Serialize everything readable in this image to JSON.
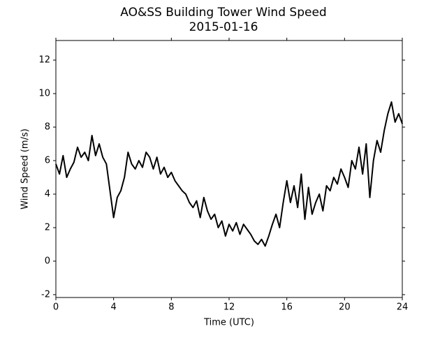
{
  "chart_data": {
    "type": "line",
    "title": "AO&SS Building Tower Wind Speed",
    "subtitle": "2015-01-16",
    "x_label": "Time (UTC)",
    "y_label": "Wind Speed (m/s)",
    "xlim": [
      0,
      24
    ],
    "xticks": [
      0,
      4,
      8,
      12,
      16,
      20,
      24
    ],
    "ylim": [
      -2.17,
      13.17
    ],
    "yticks": [
      -2,
      0,
      2,
      4,
      6,
      8,
      10,
      12
    ],
    "series": [
      {
        "name": "Wind Speed",
        "color": "#000000",
        "x": [
          0,
          0.25,
          0.5,
          0.75,
          1,
          1.25,
          1.5,
          1.75,
          2,
          2.25,
          2.5,
          2.75,
          3,
          3.25,
          3.5,
          3.75,
          4,
          4.25,
          4.5,
          4.75,
          5,
          5.25,
          5.5,
          5.75,
          6,
          6.25,
          6.5,
          6.75,
          7,
          7.25,
          7.5,
          7.75,
          8,
          8.25,
          8.5,
          8.75,
          9,
          9.25,
          9.5,
          9.75,
          10,
          10.25,
          10.5,
          10.75,
          11,
          11.25,
          11.5,
          11.75,
          12,
          12.25,
          12.5,
          12.75,
          13,
          13.25,
          13.5,
          13.75,
          14,
          14.25,
          14.5,
          14.75,
          15,
          15.25,
          15.5,
          15.75,
          16,
          16.25,
          16.5,
          16.75,
          17,
          17.25,
          17.5,
          17.75,
          18,
          18.25,
          18.5,
          18.75,
          19,
          19.25,
          19.5,
          19.75,
          20,
          20.25,
          20.5,
          20.75,
          21,
          21.25,
          21.5,
          21.75,
          22,
          22.25,
          22.5,
          22.75,
          23,
          23.25,
          23.5,
          23.75,
          24
        ],
        "values": [
          5.8,
          5.2,
          6.3,
          5.0,
          5.5,
          5.9,
          6.8,
          6.2,
          6.5,
          6.0,
          7.5,
          6.3,
          7.0,
          6.2,
          5.8,
          4.2,
          2.6,
          3.8,
          4.2,
          5.0,
          6.5,
          5.8,
          5.5,
          6.0,
          5.6,
          6.5,
          6.2,
          5.5,
          6.2,
          5.2,
          5.6,
          5.0,
          5.3,
          4.8,
          4.5,
          4.2,
          4.0,
          3.5,
          3.2,
          3.6,
          2.6,
          3.8,
          3.0,
          2.5,
          2.8,
          2.0,
          2.4,
          1.5,
          2.2,
          1.8,
          2.3,
          1.6,
          2.2,
          1.9,
          1.6,
          1.2,
          1.0,
          1.3,
          0.9,
          1.5,
          2.2,
          2.8,
          2.0,
          3.5,
          4.8,
          3.5,
          4.5,
          3.2,
          5.2,
          2.5,
          4.4,
          2.8,
          3.5,
          4.0,
          3.0,
          4.5,
          4.2,
          5.0,
          4.6,
          5.5,
          5.0,
          4.4,
          6.0,
          5.5,
          6.8,
          5.2,
          7.0,
          3.8,
          6.0,
          7.2,
          6.5,
          7.8,
          8.8,
          9.5,
          8.3,
          8.8,
          8.2
        ]
      }
    ]
  }
}
